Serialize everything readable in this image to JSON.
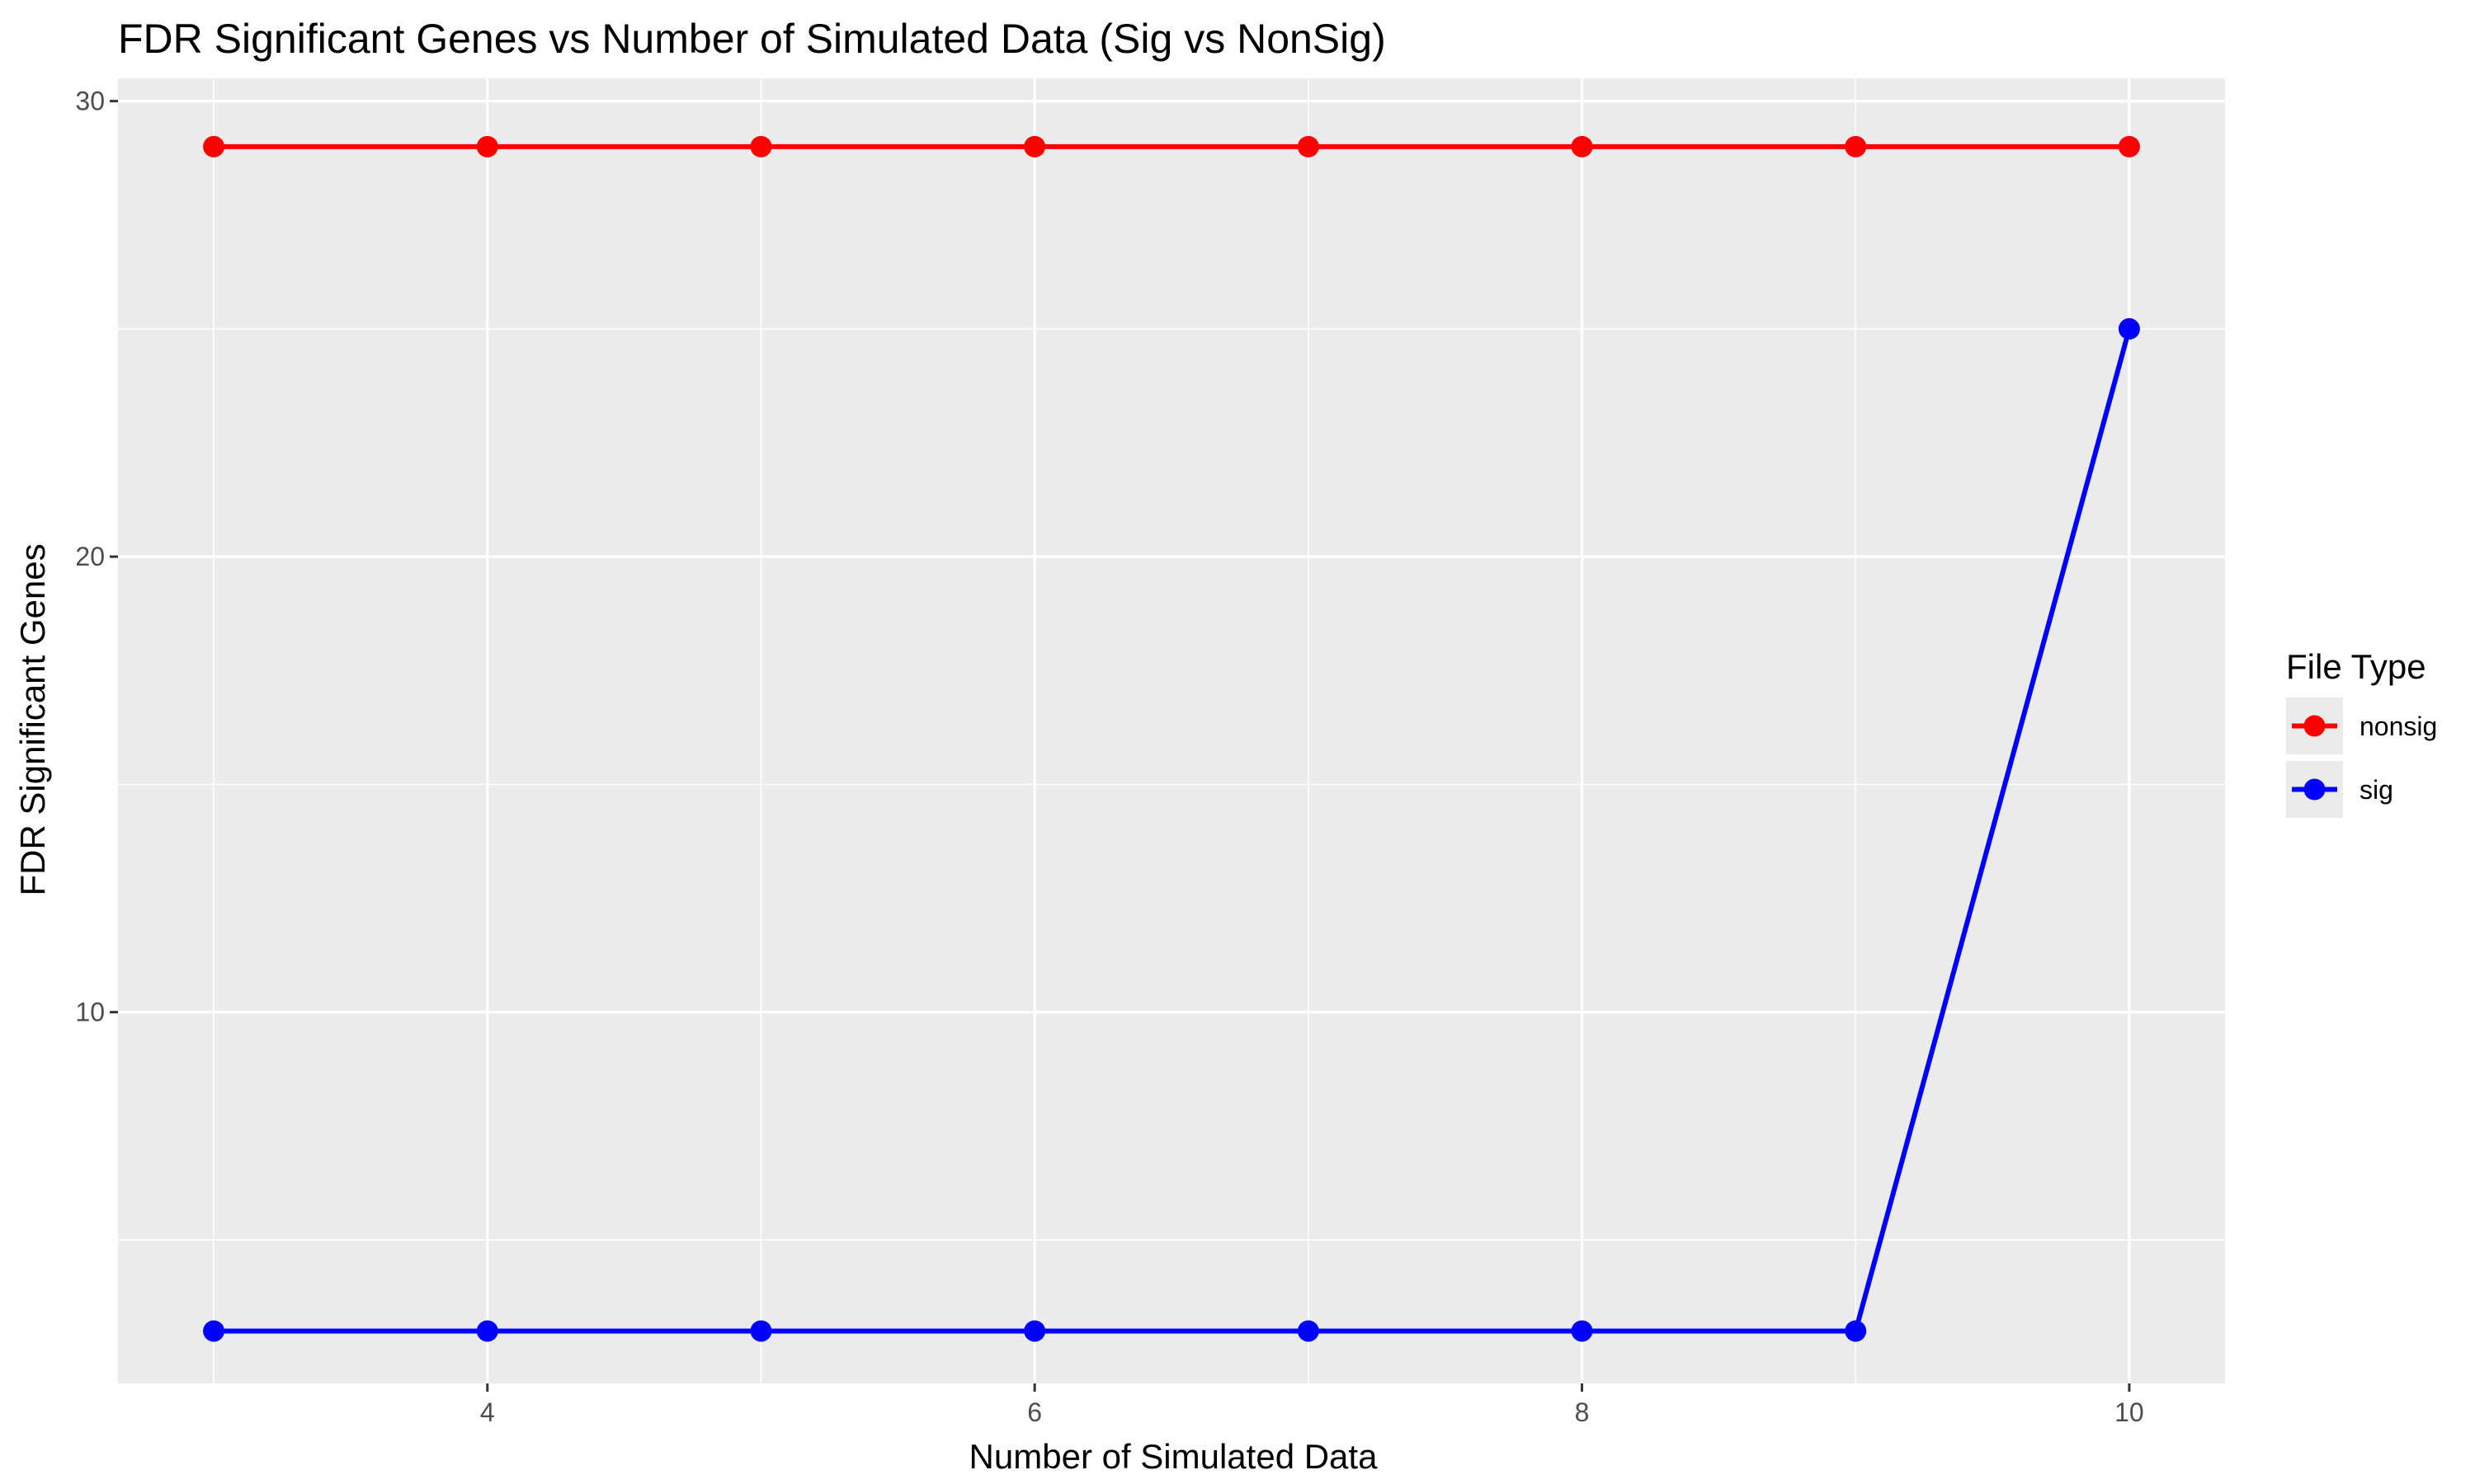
{
  "chart_data": {
    "type": "line",
    "title": "FDR Significant Genes vs Number of Simulated Data (Sig vs NonSig)",
    "xlabel": "Number of Simulated Data",
    "ylabel": "FDR Significant Genes",
    "x": [
      3,
      4,
      5,
      6,
      7,
      8,
      9,
      10
    ],
    "xlim": [
      2.65,
      10.35
    ],
    "ylim": [
      1.85,
      30.5
    ],
    "x_ticks": [
      4,
      6,
      8,
      10
    ],
    "y_ticks": [
      10,
      20,
      30
    ],
    "y_minor_ticks": [
      5,
      15,
      25
    ],
    "grid": true,
    "legend": {
      "title": "File Type",
      "position": "right"
    },
    "series": [
      {
        "name": "nonsig",
        "color": "#ff0000",
        "values": [
          29,
          29,
          29,
          29,
          29,
          29,
          29,
          29
        ]
      },
      {
        "name": "sig",
        "color": "#0000ff",
        "values": [
          3,
          3,
          3,
          3,
          3,
          3,
          3,
          25
        ]
      }
    ]
  }
}
